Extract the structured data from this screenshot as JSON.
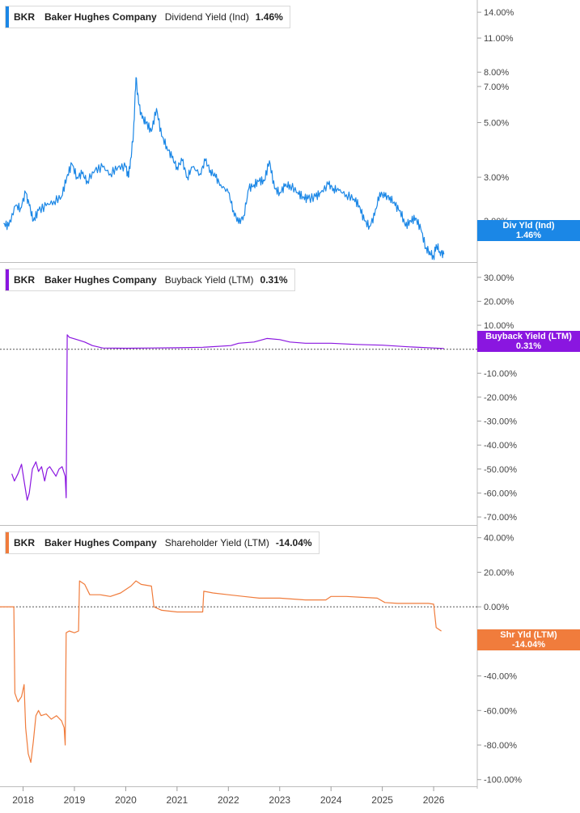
{
  "x_axis_labels": [
    "2018",
    "2019",
    "2020",
    "2021",
    "2022",
    "2023",
    "2024",
    "2025",
    "2026"
  ],
  "panels": [
    {
      "ticker": "BKR",
      "company": "Baker Hughes Company",
      "metric": "Dividend Yield (Ind)",
      "value": "1.46%",
      "tag_line1": "Div Yld (Ind)",
      "tag_line2": "1.46%",
      "color": "#1b87e6",
      "y_ticks": [
        "14.00%",
        "11.00%",
        "8.00%",
        "7.00%",
        "5.00%",
        "3.00%",
        "2.00%"
      ]
    },
    {
      "ticker": "BKR",
      "company": "Baker Hughes Company",
      "metric": "Buyback Yield (LTM)",
      "value": "0.31%",
      "tag_line1": "Buyback Yield (LTM)",
      "tag_line2": "0.31%",
      "color": "#8a16e0",
      "y_ticks": [
        "30.00%",
        "20.00%",
        "10.00%",
        "-10.00%",
        "-20.00%",
        "-30.00%",
        "-40.00%",
        "-50.00%",
        "-60.00%",
        "-70.00%"
      ]
    },
    {
      "ticker": "BKR",
      "company": "Baker Hughes Company",
      "metric": "Shareholder Yield (LTM)",
      "value": "-14.04%",
      "tag_line1": "Shr Yld (LTM)",
      "tag_line2": "-14.04%",
      "color": "#f07c3c",
      "y_ticks": [
        "40.00%",
        "20.00%",
        "0.00%",
        "-20.00%",
        "-40.00%",
        "-60.00%",
        "-80.00%",
        "-100.00%"
      ]
    }
  ],
  "chart_data": [
    {
      "type": "line",
      "title": "BKR Baker Hughes Company Dividend Yield (Ind) 1.46%",
      "scale": "log",
      "ylim": [
        1.4,
        15
      ],
      "x_range": [
        2017.55,
        2026.85
      ],
      "series": [
        {
          "name": "Dividend Yield (Ind)",
          "points": [
            [
              2017.62,
              1.95
            ],
            [
              2017.72,
              1.9
            ],
            [
              2017.85,
              2.3
            ],
            [
              2017.95,
              2.25
            ],
            [
              2018.05,
              2.6
            ],
            [
              2018.12,
              2.3
            ],
            [
              2018.2,
              2.0
            ],
            [
              2018.3,
              2.2
            ],
            [
              2018.45,
              2.3
            ],
            [
              2018.6,
              2.4
            ],
            [
              2018.75,
              2.5
            ],
            [
              2018.85,
              3.0
            ],
            [
              2018.95,
              3.4
            ],
            [
              2019.05,
              3.0
            ],
            [
              2019.15,
              3.1
            ],
            [
              2019.25,
              2.9
            ],
            [
              2019.4,
              3.2
            ],
            [
              2019.55,
              3.3
            ],
            [
              2019.7,
              3.1
            ],
            [
              2019.85,
              3.3
            ],
            [
              2020.0,
              3.3
            ],
            [
              2020.05,
              3.0
            ],
            [
              2020.1,
              3.6
            ],
            [
              2020.15,
              4.5
            ],
            [
              2020.2,
              7.6
            ],
            [
              2020.25,
              6.0
            ],
            [
              2020.32,
              5.2
            ],
            [
              2020.4,
              5.0
            ],
            [
              2020.5,
              4.6
            ],
            [
              2020.6,
              5.7
            ],
            [
              2020.7,
              4.4
            ],
            [
              2020.8,
              4.0
            ],
            [
              2020.9,
              3.6
            ],
            [
              2021.0,
              3.3
            ],
            [
              2021.1,
              3.5
            ],
            [
              2021.2,
              3.0
            ],
            [
              2021.3,
              3.3
            ],
            [
              2021.45,
              3.1
            ],
            [
              2021.55,
              3.5
            ],
            [
              2021.65,
              3.2
            ],
            [
              2021.75,
              3.0
            ],
            [
              2021.85,
              2.8
            ],
            [
              2022.0,
              2.6
            ],
            [
              2022.1,
              2.2
            ],
            [
              2022.2,
              1.95
            ],
            [
              2022.3,
              2.1
            ],
            [
              2022.4,
              2.7
            ],
            [
              2022.5,
              2.8
            ],
            [
              2022.6,
              2.9
            ],
            [
              2022.7,
              2.9
            ],
            [
              2022.8,
              3.5
            ],
            [
              2022.9,
              2.7
            ],
            [
              2023.0,
              2.6
            ],
            [
              2023.1,
              2.75
            ],
            [
              2023.2,
              2.8
            ],
            [
              2023.35,
              2.6
            ],
            [
              2023.45,
              2.5
            ],
            [
              2023.55,
              2.45
            ],
            [
              2023.7,
              2.5
            ],
            [
              2023.8,
              2.6
            ],
            [
              2023.95,
              2.8
            ],
            [
              2024.05,
              2.7
            ],
            [
              2024.15,
              2.65
            ],
            [
              2024.3,
              2.55
            ],
            [
              2024.45,
              2.45
            ],
            [
              2024.55,
              2.3
            ],
            [
              2024.65,
              2.0
            ],
            [
              2024.75,
              1.9
            ],
            [
              2024.85,
              2.1
            ],
            [
              2024.95,
              2.6
            ],
            [
              2025.05,
              2.5
            ],
            [
              2025.15,
              2.5
            ],
            [
              2025.25,
              2.3
            ],
            [
              2025.35,
              2.2
            ],
            [
              2025.45,
              1.9
            ],
            [
              2025.55,
              2.0
            ],
            [
              2025.65,
              2.05
            ],
            [
              2025.75,
              1.85
            ],
            [
              2025.85,
              1.55
            ],
            [
              2025.92,
              1.5
            ],
            [
              2026.0,
              1.42
            ],
            [
              2026.05,
              1.6
            ],
            [
              2026.12,
              1.5
            ],
            [
              2026.2,
              1.46
            ]
          ]
        }
      ]
    },
    {
      "type": "line",
      "title": "BKR Baker Hughes Company Buyback Yield (LTM) 0.31%",
      "ylim": [
        -72,
        35
      ],
      "x_range": [
        2017.55,
        2026.85
      ],
      "reference_line": 0,
      "series": [
        {
          "name": "Buyback Yield (LTM)",
          "points": [
            [
              2017.78,
              -52
            ],
            [
              2017.83,
              -55
            ],
            [
              2017.9,
              -52
            ],
            [
              2017.97,
              -48
            ],
            [
              2018.02,
              -55
            ],
            [
              2018.08,
              -63
            ],
            [
              2018.12,
              -60
            ],
            [
              2018.18,
              -50
            ],
            [
              2018.25,
              -47
            ],
            [
              2018.3,
              -51
            ],
            [
              2018.36,
              -49
            ],
            [
              2018.42,
              -55
            ],
            [
              2018.47,
              -50
            ],
            [
              2018.52,
              -49
            ],
            [
              2018.58,
              -51
            ],
            [
              2018.64,
              -53
            ],
            [
              2018.7,
              -50
            ],
            [
              2018.76,
              -49
            ],
            [
              2018.82,
              -53
            ],
            [
              2018.84,
              -62
            ],
            [
              2018.86,
              6
            ],
            [
              2018.9,
              5
            ],
            [
              2019.05,
              4
            ],
            [
              2019.2,
              3
            ],
            [
              2019.35,
              1.5
            ],
            [
              2019.55,
              0.5
            ],
            [
              2020.0,
              0.4
            ],
            [
              2020.5,
              0.5
            ],
            [
              2021.0,
              0.6
            ],
            [
              2021.5,
              0.8
            ],
            [
              2022.05,
              1.5
            ],
            [
              2022.2,
              2.5
            ],
            [
              2022.5,
              3
            ],
            [
              2022.75,
              4.5
            ],
            [
              2023.0,
              4
            ],
            [
              2023.2,
              3
            ],
            [
              2023.5,
              2.5
            ],
            [
              2024.0,
              2.5
            ],
            [
              2024.5,
              2
            ],
            [
              2025.0,
              1.7
            ],
            [
              2025.5,
              1
            ],
            [
              2026.0,
              0.5
            ],
            [
              2026.2,
              0.31
            ]
          ]
        }
      ]
    },
    {
      "type": "line",
      "title": "BKR Baker Hughes Company Shareholder Yield (LTM) -14.04%",
      "ylim": [
        -102,
        45
      ],
      "x_range": [
        2017.55,
        2026.85
      ],
      "reference_line": 0,
      "series": [
        {
          "name": "Shareholder Yield (LTM)",
          "points": [
            [
              2017.55,
              0
            ],
            [
              2017.82,
              0
            ],
            [
              2017.84,
              -50
            ],
            [
              2017.9,
              -55
            ],
            [
              2017.97,
              -52
            ],
            [
              2018.02,
              -45
            ],
            [
              2018.05,
              -70
            ],
            [
              2018.1,
              -85
            ],
            [
              2018.15,
              -90
            ],
            [
              2018.2,
              -78
            ],
            [
              2018.25,
              -63
            ],
            [
              2018.3,
              -60
            ],
            [
              2018.35,
              -63
            ],
            [
              2018.45,
              -62
            ],
            [
              2018.55,
              -65
            ],
            [
              2018.65,
              -63
            ],
            [
              2018.75,
              -66
            ],
            [
              2018.8,
              -70
            ],
            [
              2018.82,
              -80
            ],
            [
              2018.84,
              -15
            ],
            [
              2018.9,
              -14
            ],
            [
              2019.0,
              -15
            ],
            [
              2019.08,
              -14
            ],
            [
              2019.1,
              15
            ],
            [
              2019.2,
              13
            ],
            [
              2019.3,
              7
            ],
            [
              2019.5,
              7
            ],
            [
              2019.7,
              6
            ],
            [
              2019.9,
              8
            ],
            [
              2020.0,
              10
            ],
            [
              2020.1,
              12
            ],
            [
              2020.2,
              15
            ],
            [
              2020.3,
              13
            ],
            [
              2020.5,
              12
            ],
            [
              2020.55,
              0
            ],
            [
              2020.7,
              -2
            ],
            [
              2021.0,
              -3
            ],
            [
              2021.2,
              -3
            ],
            [
              2021.5,
              -3
            ],
            [
              2021.52,
              9
            ],
            [
              2021.7,
              8
            ],
            [
              2022.0,
              7
            ],
            [
              2022.3,
              6
            ],
            [
              2022.6,
              5
            ],
            [
              2023.0,
              5
            ],
            [
              2023.5,
              4
            ],
            [
              2023.9,
              4
            ],
            [
              2024.0,
              6
            ],
            [
              2024.3,
              6
            ],
            [
              2024.6,
              5.5
            ],
            [
              2024.9,
              5
            ],
            [
              2025.05,
              2.5
            ],
            [
              2025.3,
              2
            ],
            [
              2025.6,
              2
            ],
            [
              2025.9,
              2
            ],
            [
              2026.0,
              1.5
            ],
            [
              2026.05,
              -12
            ],
            [
              2026.15,
              -14.04
            ]
          ]
        }
      ]
    }
  ]
}
